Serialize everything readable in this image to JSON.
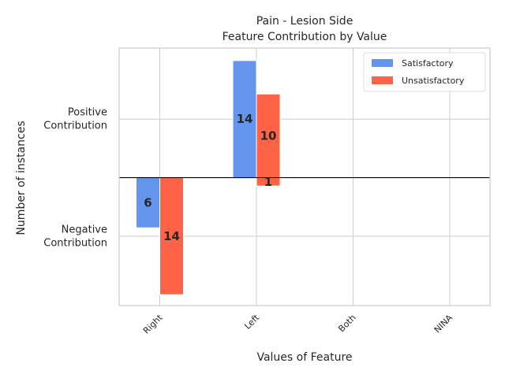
{
  "chart_data": {
    "type": "bar",
    "title": "Pain - Lesion Side",
    "subtitle": "Feature Contribution by Value",
    "xlabel": "Values of Feature",
    "ylabel": "Number of instances",
    "categories": [
      "Right",
      "Left",
      "Both",
      "NINA"
    ],
    "series": [
      {
        "name": "Satisfactory",
        "color": "#6495ed",
        "values": [
          -6,
          14,
          0,
          0
        ]
      },
      {
        "name": "Unsatisfactory",
        "color": "#ff6347",
        "values": [
          -14,
          10,
          0,
          0
        ]
      }
    ],
    "extra_segments": [
      {
        "series": "Unsatisfactory",
        "category": "Left",
        "value": -1
      }
    ],
    "ytick_labels": [
      {
        "value": 7,
        "label": [
          "Positive",
          "Contribution"
        ]
      },
      {
        "value": -7,
        "label": [
          "Negative",
          "Contribution"
        ]
      }
    ],
    "ylim": [
      -15.3,
      15.5
    ],
    "grid": true,
    "legend_position": "top-right"
  }
}
